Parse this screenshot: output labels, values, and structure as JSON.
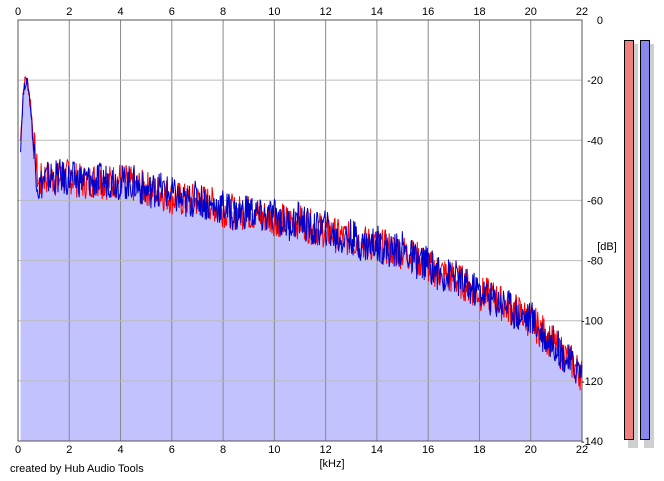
{
  "app": {
    "credit": "created by Hub Audio Tools"
  },
  "colors": {
    "background": "#ffffff",
    "plot_fill": "#c2c2ff",
    "grid": "#bbbbbb",
    "major_grid": "#888888",
    "channel_left": "#ff0000",
    "channel_right": "#0000cc",
    "meter_left": "#f08080",
    "meter_right": "#8888ee"
  },
  "chart_data": {
    "type": "line",
    "title": "",
    "xlabel": "[kHz]",
    "ylabel": "[dB]",
    "xlim": [
      0,
      22
    ],
    "ylim": [
      -140,
      0
    ],
    "x_ticks": [
      "0",
      "2",
      "4",
      "6",
      "8",
      "10",
      "12",
      "14",
      "16",
      "18",
      "20",
      "22"
    ],
    "y_ticks": [
      "0",
      "-20",
      "-40",
      "-60",
      "-80",
      "-100",
      "-120",
      "-140"
    ],
    "grid": true,
    "area_fill": true,
    "x": [
      0.1,
      0.2,
      0.3,
      0.4,
      0.5,
      0.6,
      0.8,
      1,
      1.5,
      2,
      2.5,
      3,
      3.5,
      4,
      4.5,
      5,
      5.5,
      6,
      6.5,
      7,
      7.5,
      8,
      8.5,
      9,
      9.5,
      10,
      10.5,
      11,
      11.5,
      12,
      12.5,
      13,
      13.5,
      14,
      14.5,
      15,
      15.5,
      16,
      16.5,
      17,
      17.5,
      18,
      18.5,
      19,
      19.5,
      20,
      20.5,
      21,
      21.5,
      22
    ],
    "series": [
      {
        "values": [
          -40,
          -24,
          -19,
          -22,
          -28,
          -40,
          -55,
          -52,
          -53,
          -52,
          -54,
          -53,
          -54,
          -53,
          -55,
          -56,
          -57,
          -59,
          -60,
          -60,
          -61,
          -63,
          -64,
          -64,
          -65,
          -66,
          -67,
          -67,
          -69,
          -70,
          -72,
          -73,
          -74,
          -75,
          -76,
          -77,
          -79,
          -82,
          -84,
          -86,
          -88,
          -91,
          -92,
          -95,
          -97,
          -100,
          -104,
          -109,
          -113,
          -118
        ]
      },
      {
        "values": [
          -42,
          -25,
          -20,
          -22,
          -30,
          -42,
          -56,
          -53,
          -52,
          -53,
          -53,
          -54,
          -53,
          -54,
          -54,
          -57,
          -56,
          -58,
          -61,
          -59,
          -62,
          -62,
          -65,
          -63,
          -66,
          -65,
          -68,
          -66,
          -70,
          -69,
          -73,
          -72,
          -75,
          -74,
          -77,
          -76,
          -80,
          -81,
          -85,
          -85,
          -89,
          -90,
          -93,
          -94,
          -98,
          -99,
          -105,
          -108,
          -114,
          -117
        ]
      }
    ]
  }
}
